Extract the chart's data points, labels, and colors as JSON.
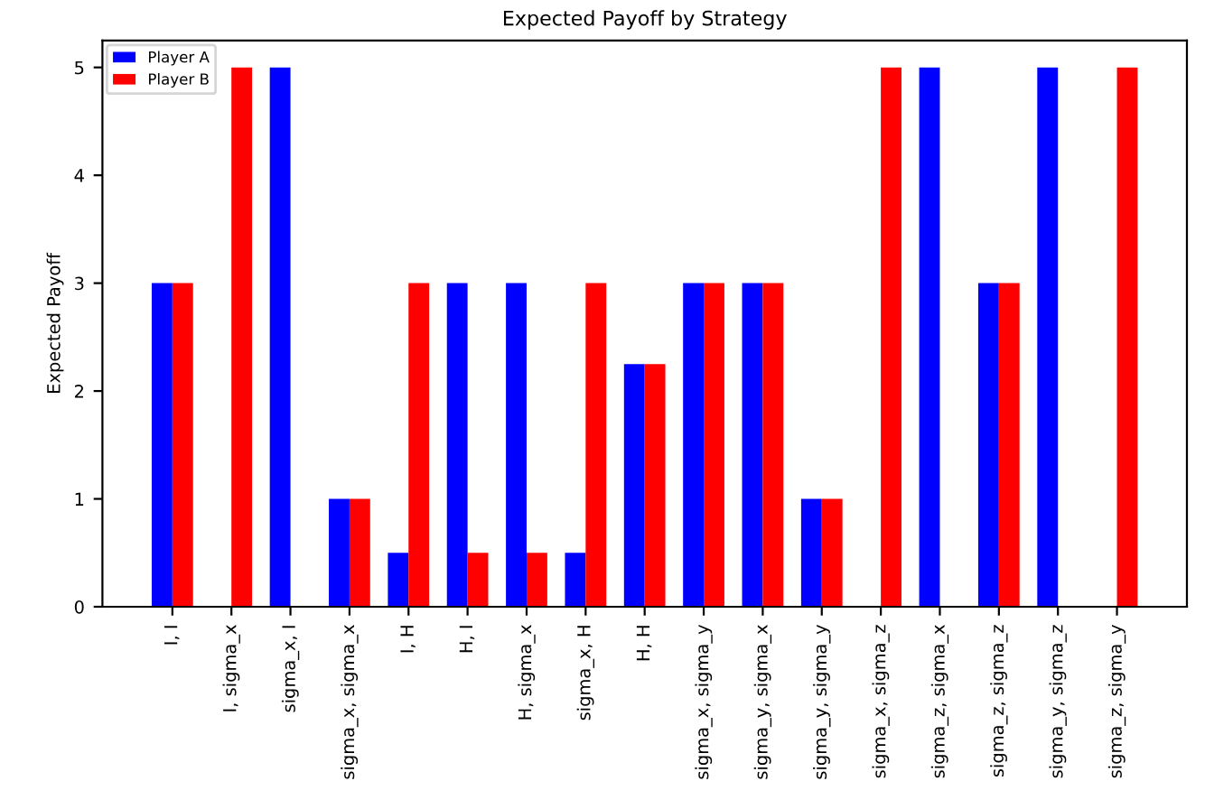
{
  "chart_data": {
    "type": "bar",
    "title": "Expected Payoff by Strategy",
    "ylabel": "Expected Payoff",
    "categories": [
      "I, I",
      "I, sigma_x",
      "sigma_x, I",
      "sigma_x, sigma_x",
      "I, H",
      "H, I",
      "H, sigma_x",
      "sigma_x, H",
      "H, H",
      "sigma_x, sigma_y",
      "sigma_y, sigma_x",
      "sigma_y, sigma_y",
      "sigma_x, sigma_z",
      "sigma_z, sigma_x",
      "sigma_z, sigma_z",
      "sigma_y, sigma_z",
      "sigma_z, sigma_y"
    ],
    "series": [
      {
        "name": "Player A",
        "color": "#0000ff",
        "values": [
          3,
          0,
          5,
          1,
          0.5,
          3,
          3,
          0.5,
          2.25,
          3,
          3,
          1,
          0,
          5,
          3,
          5,
          0
        ]
      },
      {
        "name": "Player B",
        "color": "#ff0000",
        "values": [
          3,
          5,
          0,
          1,
          3,
          0.5,
          0.5,
          3,
          2.25,
          3,
          3,
          1,
          5,
          0,
          3,
          0,
          5
        ]
      }
    ],
    "ylim": [
      0,
      5.25
    ],
    "yticks": [
      0,
      1,
      2,
      3,
      4,
      5
    ],
    "grid": false,
    "legend": "top left"
  }
}
